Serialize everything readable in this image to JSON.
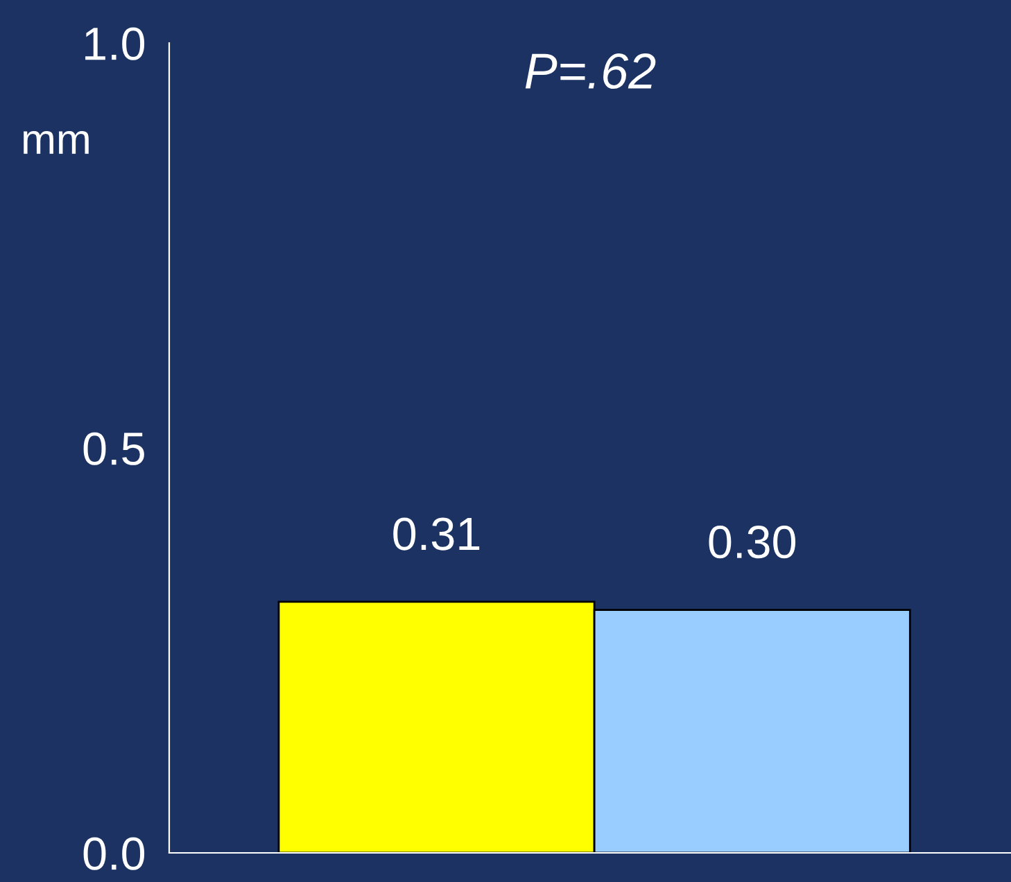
{
  "chart_data": {
    "type": "bar",
    "ylabel": "mm",
    "annotations": [
      "P=.62"
    ],
    "categories": [
      null,
      null
    ],
    "values": [
      0.31,
      0.3
    ],
    "colors": [
      "#ffff00",
      "#99ccff"
    ],
    "value_labels": [
      "0.31",
      "0.30"
    ],
    "ylim": [
      0,
      1
    ],
    "yticks": [
      {
        "value": 0,
        "label": "0.0"
      },
      {
        "value": 0.5,
        "label": "0.5"
      },
      {
        "value": 1,
        "label": "1.0"
      }
    ],
    "grid": false,
    "legend": false
  }
}
